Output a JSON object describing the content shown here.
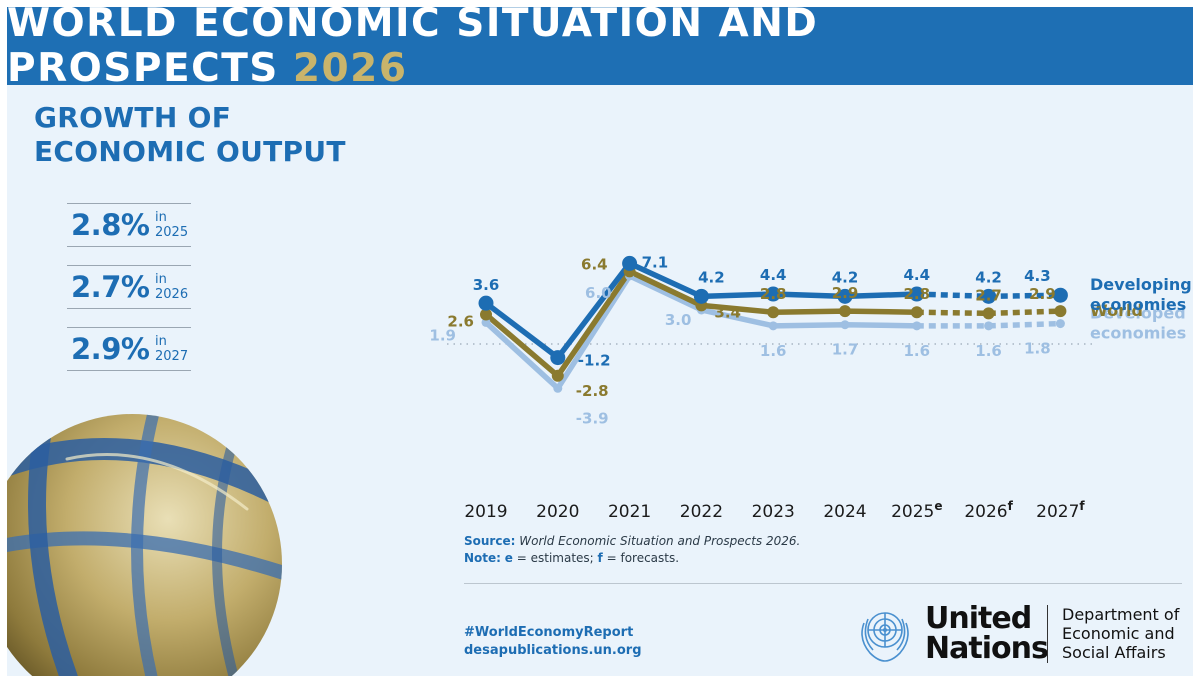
{
  "banner": {
    "title": "WORLD ECONOMIC SITUATION AND PROSPECTS",
    "year": "2026"
  },
  "subtitle": {
    "line1": "GROWTH OF",
    "line2": "ECONOMIC OUTPUT"
  },
  "stats": [
    {
      "value": "2.8%",
      "in": "in",
      "year": "2025"
    },
    {
      "value": "2.7%",
      "in": "in",
      "year": "2026"
    },
    {
      "value": "2.9%",
      "in": "in",
      "year": "2027"
    }
  ],
  "chart_data": {
    "type": "line",
    "title": "",
    "xlabel": "",
    "ylabel": "",
    "categories": [
      {
        "label": "2019",
        "sup": ""
      },
      {
        "label": "2020",
        "sup": ""
      },
      {
        "label": "2021",
        "sup": ""
      },
      {
        "label": "2022",
        "sup": ""
      },
      {
        "label": "2023",
        "sup": ""
      },
      {
        "label": "2024",
        "sup": ""
      },
      {
        "label": "2025",
        "sup": "e"
      },
      {
        "label": "2026",
        "sup": "f"
      },
      {
        "label": "2027",
        "sup": "f"
      }
    ],
    "ylim": [
      -4.5,
      7.5
    ],
    "zero_line": true,
    "dashed_from_index": 6,
    "legend_placement": "right, inline at line ends",
    "series": [
      {
        "name": "Developed economies",
        "legend_lines": [
          "Developed",
          "economies"
        ],
        "color": "#9ebfe2",
        "values": [
          1.9,
          -3.9,
          6.0,
          3.0,
          1.6,
          1.7,
          1.6,
          1.6,
          1.8
        ],
        "value_labels": [
          "1.9",
          "-3.9",
          "6.0",
          "3.0",
          "1.6",
          "1.7",
          "1.6",
          "1.6",
          "1.8"
        ]
      },
      {
        "name": "World",
        "legend_lines": [
          "World"
        ],
        "color": "#8a7a2f",
        "values": [
          2.6,
          -2.8,
          6.4,
          3.4,
          2.8,
          2.9,
          2.8,
          2.7,
          2.9
        ],
        "value_labels": [
          "2.6",
          "-2.8",
          "6.4",
          "3.4",
          "2.8",
          "2.9",
          "2.8",
          "2.7",
          "2.9"
        ]
      },
      {
        "name": "Developing economies",
        "legend_lines": [
          "Developing",
          "economies"
        ],
        "color": "#1d6db3",
        "values": [
          3.6,
          -1.2,
          7.1,
          4.2,
          4.4,
          4.2,
          4.4,
          4.2,
          4.3
        ],
        "value_labels": [
          "3.6",
          "-1.2",
          "7.1",
          "4.2",
          "4.4",
          "4.2",
          "4.4",
          "4.2",
          "4.3"
        ]
      }
    ]
  },
  "source": {
    "label": "Source:",
    "text": "World Economic Situation and Prospects 2026."
  },
  "note": {
    "label": "Note:",
    "e": "e",
    "e_text": " = estimates; ",
    "f": "f",
    "f_text": " = forecasts."
  },
  "footer": {
    "hashtag": "#WorldEconomyReport",
    "website": "desapublications.un.org",
    "un_line1": "United",
    "un_line2": "Nations",
    "desa_line1": "Department of",
    "desa_line2": "Economic and",
    "desa_line3": "Social Affairs"
  },
  "colors": {
    "blue": "#1d6db3",
    "gold": "#8a7a2f",
    "light_blue": "#9ebfe2",
    "banner": "#1e6fb4",
    "background": "#eaf3fb"
  }
}
